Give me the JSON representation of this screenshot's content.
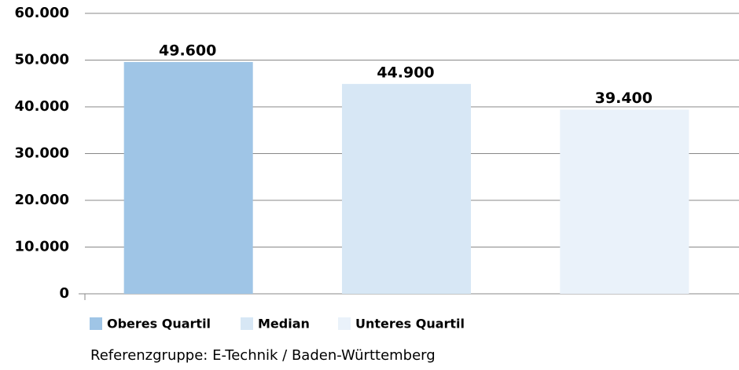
{
  "chart_data": {
    "type": "bar",
    "series": [
      {
        "name": "Oberes Quartil",
        "color": "#9fc5e6",
        "values": [
          49600
        ],
        "value_labels": [
          "49.600"
        ]
      },
      {
        "name": "Median",
        "color": "#d7e7f5",
        "values": [
          44900
        ],
        "value_labels": [
          "44.900"
        ]
      },
      {
        "name": "Unteres Quartil",
        "color": "#eaf2fa",
        "values": [
          39400
        ],
        "value_labels": [
          "39.400"
        ]
      }
    ],
    "ylim": [
      0,
      60000
    ],
    "yticks": [
      0,
      {
        "value": 10000,
        "label": "10.000"
      },
      {
        "value": 20000,
        "label": "20.000"
      },
      {
        "value": 30000,
        "label": "30.000"
      },
      {
        "value": 40000,
        "label": "40.000"
      },
      {
        "value": 50000,
        "label": "50.000"
      },
      {
        "value": 60000,
        "label": "60.000"
      }
    ],
    "grid": true,
    "legend": "bottom",
    "annotations": [
      "Referenzgruppe: E-Technik / Baden-Württemberg"
    ]
  }
}
